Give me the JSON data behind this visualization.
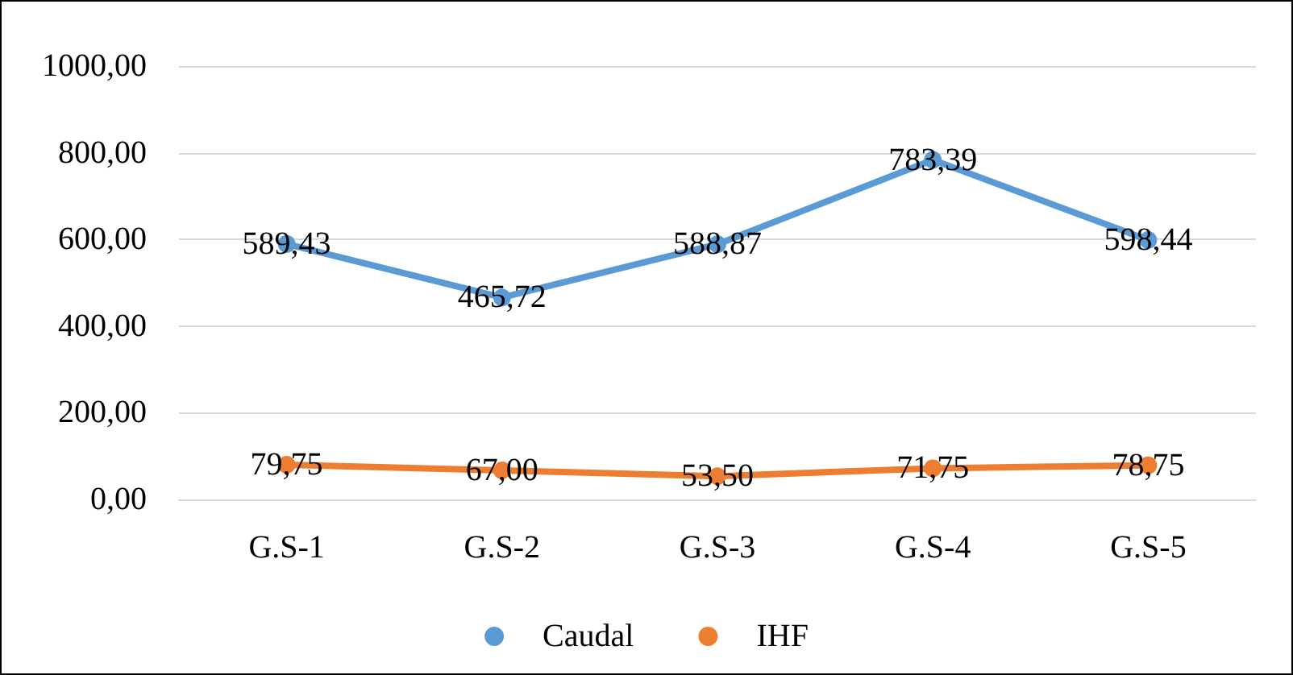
{
  "chart_data": {
    "type": "line",
    "categories": [
      "G.S-1",
      "G.S-2",
      "G.S-3",
      "G.S-4",
      "G.S-5"
    ],
    "series": [
      {
        "name": "Caudal",
        "color": "#5b9bd5",
        "values": [
          589.43,
          465.72,
          588.87,
          783.39,
          598.44
        ],
        "value_labels": [
          "589,43",
          "465,72",
          "588,87",
          "783,39",
          "598,44"
        ]
      },
      {
        "name": "IHF",
        "color": "#ed7d31",
        "values": [
          79.75,
          67.0,
          53.5,
          71.75,
          78.75
        ],
        "value_labels": [
          "79,75",
          "67,00",
          "53,50",
          "71,75",
          "78,75"
        ]
      }
    ],
    "ylim": [
      0,
      1000
    ],
    "yticks": [
      {
        "value": 0,
        "label": "0,00"
      },
      {
        "value": 200,
        "label": "200,00"
      },
      {
        "value": 400,
        "label": "400,00"
      },
      {
        "value": 600,
        "label": "600,00"
      },
      {
        "value": 800,
        "label": "800,00"
      },
      {
        "value": 1000,
        "label": "1000,00"
      }
    ],
    "grid": "y",
    "legend": "bottom",
    "marker": "circle",
    "line_style": "solid"
  }
}
